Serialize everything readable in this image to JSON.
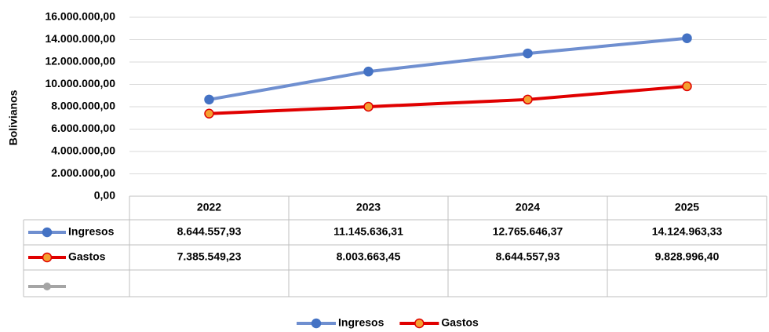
{
  "chart_data": {
    "type": "line",
    "y_axis_label": "Bolivianos",
    "categories": [
      "2022",
      "2023",
      "2024",
      "2025"
    ],
    "series": [
      {
        "name": "Ingresos",
        "color": "#6f8fd0",
        "marker_color": "#4472c4",
        "values": [
          8644557.93,
          11145636.31,
          12765646.37,
          14124963.33
        ],
        "value_labels": [
          "8.644.557,93",
          "11.145.636,31",
          "12.765.646,37",
          "14.124.963,33"
        ]
      },
      {
        "name": "Gastos",
        "color": "#e00000",
        "marker_color": "#f4a030",
        "values": [
          7385549.23,
          8003663.45,
          8644557.93,
          9828996.4
        ],
        "value_labels": [
          "7.385.549,23",
          "8.003.663,45",
          "8.644.557,93",
          "9.828.996,40"
        ]
      }
    ],
    "ylim": [
      0,
      16000000
    ],
    "yticks": [
      {
        "value": 0,
        "label": "0,00"
      },
      {
        "value": 2000000,
        "label": "2.000.000,00"
      },
      {
        "value": 4000000,
        "label": "4.000.000,00"
      },
      {
        "value": 6000000,
        "label": "6.000.000,00"
      },
      {
        "value": 8000000,
        "label": "8.000.000,00"
      },
      {
        "value": 10000000,
        "label": "10.000.000,00"
      },
      {
        "value": 12000000,
        "label": "12.000.000,00"
      },
      {
        "value": 14000000,
        "label": "14.000.000,00"
      },
      {
        "value": 16000000,
        "label": "16.000.000,00"
      }
    ],
    "grid": true,
    "legend": "bottom"
  }
}
